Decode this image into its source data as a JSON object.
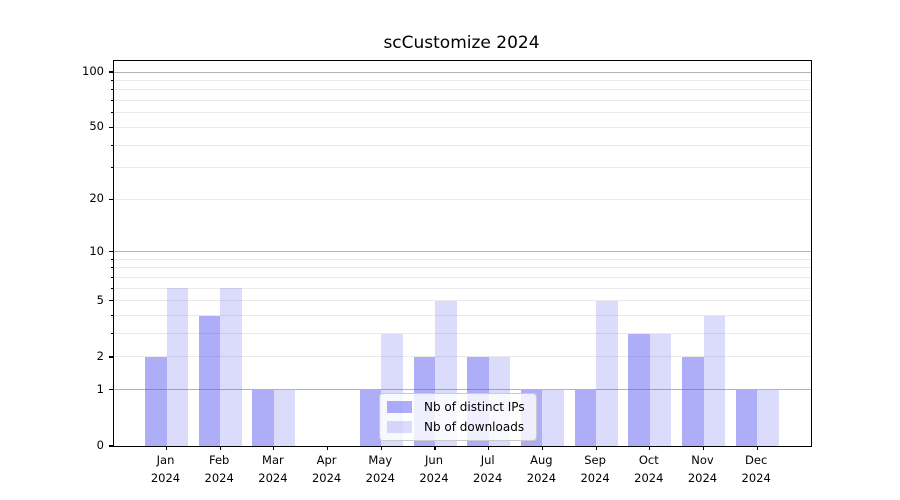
{
  "figure": {
    "background": "#ffffff"
  },
  "chart_data": {
    "type": "bar",
    "title": "scCustomize 2024",
    "xlabel": "",
    "ylabel": "",
    "grid": "both",
    "categories": [
      "Jan",
      "Feb",
      "Mar",
      "Apr",
      "May",
      "Jun",
      "Jul",
      "Aug",
      "Sep",
      "Oct",
      "Nov",
      "Dec"
    ],
    "x_tick_year": "2024",
    "series": [
      {
        "name": "Nb of distinct IPs",
        "values": [
          2,
          4,
          1,
          0,
          1,
          2,
          2,
          1,
          1,
          3,
          2,
          1
        ],
        "color": "#a9a9f4",
        "fill": "rgba(85,85,240,0.48)"
      },
      {
        "name": "Nb of downloads",
        "values": [
          6,
          6,
          1,
          0,
          3,
          5,
          2,
          1,
          5,
          3,
          4,
          1
        ],
        "color": "#dadaf8",
        "fill": "rgba(85,85,240,0.21)"
      }
    ],
    "yaxis": {
      "scale": "log1p",
      "ylim": [
        0,
        115
      ],
      "tick_values": [
        100,
        50,
        20,
        10,
        5,
        2,
        1,
        0
      ],
      "tick_labels": [
        "100",
        "50",
        "20",
        "10",
        "5",
        "2",
        "1",
        "0"
      ],
      "major_grid": [
        1,
        10,
        100
      ],
      "minor_grid": [
        2,
        3,
        4,
        5,
        6,
        7,
        8,
        9,
        20,
        30,
        40,
        50,
        60,
        70,
        80,
        90
      ],
      "major_grid_color": "#b3b3b3",
      "minor_grid_color": "#e9e9e9"
    },
    "legend": {
      "position": "lower-center"
    }
  }
}
